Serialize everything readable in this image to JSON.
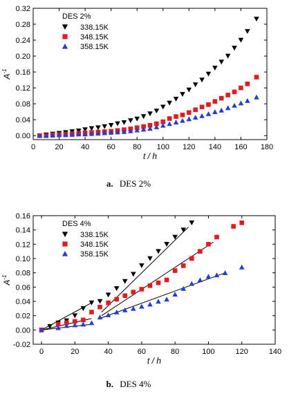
{
  "chart_data": [
    {
      "type": "scatter",
      "caption_letter": "a.",
      "caption_text": "DES 2%",
      "xlabel": "t / h",
      "ylabel": "A-1",
      "xlim": [
        0,
        180
      ],
      "ylim": [
        -0.01,
        0.32
      ],
      "xticks": [
        0,
        20,
        40,
        60,
        80,
        100,
        120,
        140,
        160,
        180
      ],
      "yticks": [
        0.0,
        0.04,
        0.08,
        0.12,
        0.16,
        0.2,
        0.24,
        0.28,
        0.32
      ],
      "ytick_labels": [
        "0.00",
        "0.04",
        "0.08",
        "0.12",
        "0.16",
        "0.20",
        "0.24",
        "0.28",
        "0.32"
      ],
      "legend_title": "DES 2%",
      "legend_position": "top-left",
      "series": [
        {
          "name": "338.15K",
          "marker": "triangle-down",
          "color": "#000000",
          "x": [
            5,
            10,
            15,
            20,
            25,
            30,
            35,
            40,
            45,
            50,
            55,
            60,
            65,
            70,
            75,
            80,
            85,
            90,
            95,
            100,
            105,
            110,
            115,
            120,
            125,
            130,
            135,
            140,
            145,
            150,
            155,
            160,
            165,
            172
          ],
          "y": [
            0.0,
            0.002,
            0.004,
            0.006,
            0.008,
            0.01,
            0.012,
            0.015,
            0.018,
            0.02,
            0.023,
            0.026,
            0.03,
            0.033,
            0.038,
            0.042,
            0.048,
            0.055,
            0.062,
            0.072,
            0.082,
            0.092,
            0.104,
            0.115,
            0.128,
            0.14,
            0.155,
            0.17,
            0.185,
            0.2,
            0.22,
            0.24,
            0.262,
            0.293
          ]
        },
        {
          "name": "348.15K",
          "marker": "square",
          "color": "#e8191c",
          "x": [
            5,
            10,
            15,
            20,
            25,
            30,
            35,
            40,
            45,
            50,
            55,
            60,
            65,
            70,
            75,
            80,
            85,
            90,
            95,
            100,
            105,
            110,
            115,
            120,
            125,
            130,
            135,
            140,
            145,
            150,
            155,
            160,
            165,
            172
          ],
          "y": [
            0.0,
            0.0,
            0.002,
            0.003,
            0.004,
            0.005,
            0.006,
            0.007,
            0.008,
            0.009,
            0.01,
            0.011,
            0.013,
            0.015,
            0.017,
            0.02,
            0.023,
            0.026,
            0.03,
            0.035,
            0.043,
            0.048,
            0.052,
            0.058,
            0.065,
            0.072,
            0.078,
            0.086,
            0.094,
            0.102,
            0.11,
            0.12,
            0.13,
            0.147
          ]
        },
        {
          "name": "358.15K",
          "marker": "triangle-up",
          "color": "#1f3fd6",
          "x": [
            5,
            10,
            15,
            20,
            25,
            30,
            35,
            40,
            45,
            50,
            55,
            60,
            65,
            70,
            75,
            80,
            85,
            90,
            95,
            100,
            105,
            110,
            115,
            120,
            125,
            130,
            135,
            140,
            145,
            150,
            155,
            160,
            165,
            172
          ],
          "y": [
            0.0,
            0.0,
            0.001,
            0.002,
            0.002,
            0.003,
            0.004,
            0.004,
            0.005,
            0.006,
            0.007,
            0.008,
            0.009,
            0.01,
            0.012,
            0.014,
            0.016,
            0.018,
            0.022,
            0.026,
            0.03,
            0.034,
            0.038,
            0.042,
            0.046,
            0.05,
            0.055,
            0.06,
            0.064,
            0.07,
            0.076,
            0.082,
            0.088,
            0.097
          ]
        }
      ]
    },
    {
      "type": "scatter",
      "caption_letter": "b.",
      "caption_text": "DES 4%",
      "xlabel": "t / h",
      "ylabel": "A-1",
      "xlim": [
        -5,
        140
      ],
      "ylim": [
        -0.02,
        0.16
      ],
      "xticks": [
        0,
        20,
        40,
        60,
        80,
        100,
        120,
        140
      ],
      "yticks": [
        -0.02,
        0.0,
        0.02,
        0.04,
        0.06,
        0.08,
        0.1,
        0.12,
        0.14,
        0.16
      ],
      "ytick_labels": [
        "-0.02",
        "0.00",
        "0.02",
        "0.04",
        "0.06",
        "0.08",
        "0.10",
        "0.12",
        "0.14",
        "0.16"
      ],
      "legend_title": "DES 4%",
      "legend_position": "top-left",
      "series": [
        {
          "name": "338.15K",
          "marker": "triangle-down",
          "color": "#000000",
          "x": [
            0,
            5,
            10,
            15,
            20,
            25,
            30,
            35,
            40,
            45,
            50,
            55,
            60,
            65,
            70,
            75,
            80,
            85,
            90
          ],
          "y": [
            0.0,
            0.005,
            0.01,
            0.013,
            0.02,
            0.03,
            0.038,
            0.04,
            0.049,
            0.058,
            0.068,
            0.078,
            0.09,
            0.1,
            0.11,
            0.12,
            0.13,
            0.14,
            0.15
          ],
          "fit_lines": [
            {
              "x": [
                0,
                30
              ],
              "y": [
                0.0,
                0.038
              ]
            },
            {
              "x": [
                36,
                88
              ],
              "y": [
                0.025,
                0.144
              ]
            }
          ]
        },
        {
          "name": "348.15K",
          "marker": "square",
          "color": "#e8191c",
          "x": [
            0,
            10,
            15,
            20,
            25,
            30,
            35,
            40,
            45,
            50,
            55,
            60,
            65,
            70,
            75,
            80,
            85,
            90,
            95,
            100,
            105,
            115,
            120
          ],
          "y": [
            0.0,
            0.008,
            0.01,
            0.012,
            0.014,
            0.025,
            0.032,
            0.038,
            0.043,
            0.048,
            0.053,
            0.057,
            0.062,
            0.066,
            0.07,
            0.083,
            0.09,
            0.1,
            0.11,
            0.12,
            0.13,
            0.145,
            0.15
          ],
          "fit_lines": [
            {
              "x": [
                0,
                30
              ],
              "y": [
                0.0,
                0.016
              ]
            },
            {
              "x": [
                36,
                103
              ],
              "y": [
                0.02,
                0.123
              ]
            }
          ]
        },
        {
          "name": "358.15K",
          "marker": "triangle-up",
          "color": "#1f3fd6",
          "x": [
            0,
            10,
            15,
            20,
            25,
            30,
            35,
            40,
            45,
            50,
            55,
            60,
            65,
            70,
            75,
            80,
            85,
            90,
            95,
            100,
            105,
            110,
            120
          ],
          "y": [
            0.0,
            0.003,
            0.006,
            0.007,
            0.008,
            0.01,
            0.018,
            0.021,
            0.025,
            0.028,
            0.03,
            0.033,
            0.036,
            0.04,
            0.043,
            0.05,
            0.058,
            0.065,
            0.07,
            0.075,
            0.077,
            0.08,
            0.088
          ],
          "fit_lines": [
            {
              "x": [
                0,
                30
              ],
              "y": [
                0.0,
                0.008
              ]
            },
            {
              "x": [
                36,
                110
              ],
              "y": [
                0.017,
                0.08
              ]
            }
          ]
        }
      ]
    }
  ]
}
